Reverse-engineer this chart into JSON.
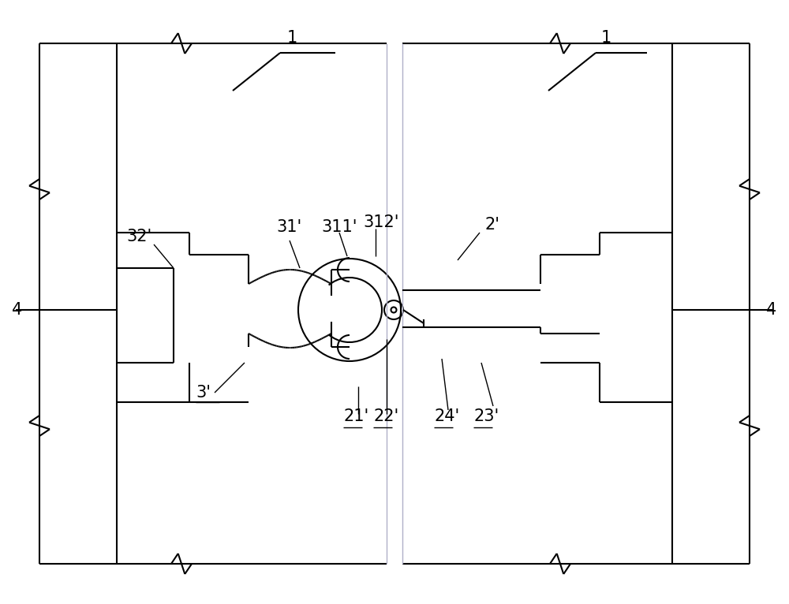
{
  "bg_color": "#ffffff",
  "line_color": "#000000",
  "gray_line_color": "#b0b0c8",
  "fig_width": 10.0,
  "fig_height": 7.66,
  "dpi": 100
}
